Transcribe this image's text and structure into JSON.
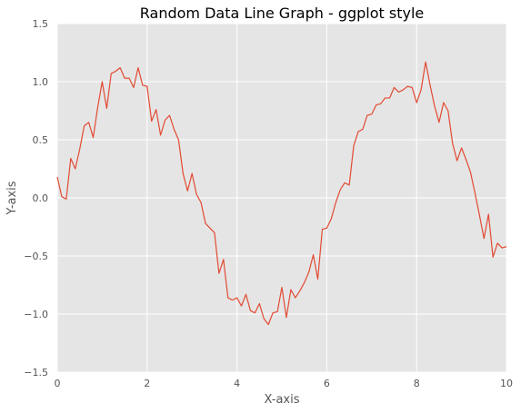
{
  "chart_data": {
    "type": "line",
    "title": "Random Data Line Graph - ggplot style",
    "xlabel": "X-axis",
    "ylabel": "Y-axis",
    "xlim": [
      0,
      10
    ],
    "ylim": [
      -1.5,
      1.5
    ],
    "xticks": [
      0,
      2,
      4,
      6,
      8,
      10
    ],
    "yticks": [
      -1.5,
      -1.0,
      -0.5,
      0.0,
      0.5,
      1.0,
      1.5
    ],
    "xtick_labels": [
      "0",
      "2",
      "4",
      "6",
      "8",
      "10"
    ],
    "ytick_labels": [
      "−1.5",
      "−1.0",
      "−0.5",
      "0.0",
      "0.5",
      "1.0",
      "1.5"
    ],
    "grid": true,
    "colors": {
      "background": "#e5e5e5",
      "grid": "#ffffff",
      "line": "#e24a33"
    },
    "series": [
      {
        "x": [
          0.0,
          0.1,
          0.2,
          0.3,
          0.4,
          0.5,
          0.6,
          0.7,
          0.8,
          0.9,
          1.0,
          1.1,
          1.2,
          1.3,
          1.4,
          1.5,
          1.6,
          1.7,
          1.8,
          1.9,
          2.0,
          2.1,
          2.2,
          2.3,
          2.4,
          2.5,
          2.6,
          2.7,
          2.8,
          2.9,
          3.0,
          3.1,
          3.2,
          3.3,
          3.4,
          3.5,
          3.6,
          3.7,
          3.8,
          3.9,
          4.0,
          4.1,
          4.2,
          4.3,
          4.4,
          4.5,
          4.6,
          4.7,
          4.8,
          4.9,
          5.0,
          5.1,
          5.2,
          5.3,
          5.4,
          5.5,
          5.6,
          5.7,
          5.8,
          5.9,
          6.0,
          6.1,
          6.2,
          6.3,
          6.4,
          6.5,
          6.6,
          6.7,
          6.8,
          6.9,
          7.0,
          7.1,
          7.2,
          7.3,
          7.4,
          7.5,
          7.6,
          7.7,
          7.8,
          7.9,
          8.0,
          8.1,
          8.2,
          8.3,
          8.4,
          8.5,
          8.6,
          8.7,
          8.8,
          8.9,
          9.0,
          9.1,
          9.2,
          9.3,
          9.4,
          9.5,
          9.6,
          9.7,
          9.8,
          9.9,
          10.0
        ],
        "y": [
          0.18,
          0.01,
          -0.01,
          0.34,
          0.25,
          0.42,
          0.62,
          0.65,
          0.52,
          0.78,
          1.0,
          0.77,
          1.07,
          1.09,
          1.12,
          1.03,
          1.03,
          0.95,
          1.12,
          0.97,
          0.96,
          0.66,
          0.76,
          0.54,
          0.67,
          0.71,
          0.59,
          0.5,
          0.21,
          0.06,
          0.21,
          0.03,
          -0.04,
          -0.22,
          -0.26,
          -0.3,
          -0.65,
          -0.53,
          -0.86,
          -0.88,
          -0.86,
          -0.93,
          -0.83,
          -0.97,
          -0.99,
          -0.91,
          -1.04,
          -1.09,
          -0.99,
          -0.98,
          -0.77,
          -1.03,
          -0.79,
          -0.86,
          -0.8,
          -0.73,
          -0.64,
          -0.49,
          -0.7,
          -0.27,
          -0.26,
          -0.18,
          -0.04,
          0.07,
          0.13,
          0.11,
          0.45,
          0.57,
          0.59,
          0.71,
          0.72,
          0.8,
          0.81,
          0.86,
          0.86,
          0.95,
          0.91,
          0.93,
          0.96,
          0.95,
          0.82,
          0.93,
          1.17,
          0.97,
          0.79,
          0.65,
          0.82,
          0.75,
          0.47,
          0.32,
          0.43,
          0.33,
          0.22,
          0.04,
          -0.15,
          -0.35,
          -0.14,
          -0.51,
          -0.39,
          -0.43,
          -0.42
        ]
      }
    ]
  }
}
